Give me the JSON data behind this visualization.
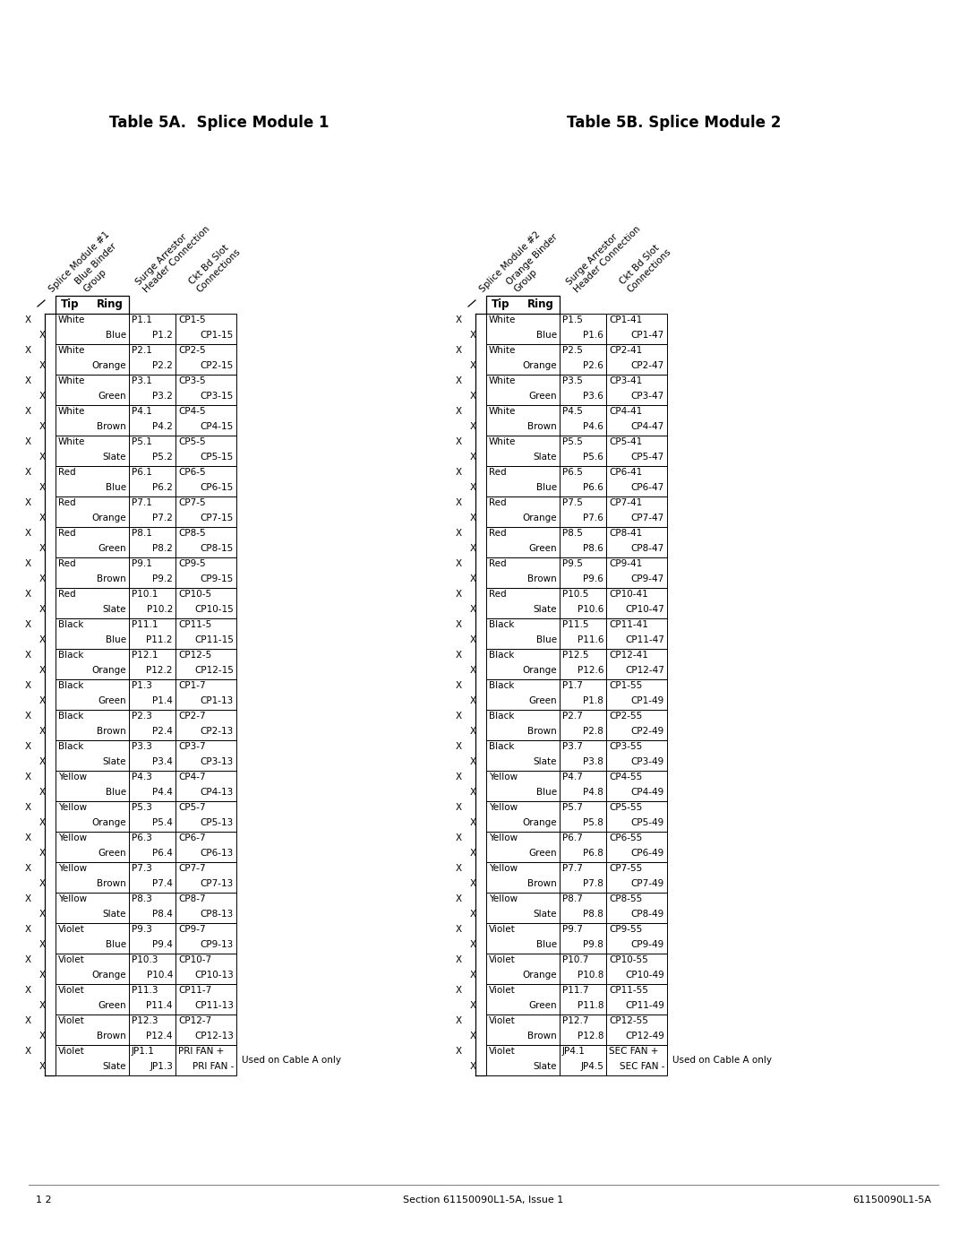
{
  "title_a": "Table 5A.  Splice Module 1",
  "title_b": "Table 5B. Splice Module 2",
  "footer_left": "1 2",
  "footer_center": "Section 61150090L1-5A, Issue 1",
  "footer_right": "61150090L1-5A",
  "col_headers_a": [
    "Splice Module #1",
    "Blue Binder\nGroup",
    "Surge Arrestor\nHeader Connection",
    "Ckt Bd Slot\nConnections"
  ],
  "col_headers_b": [
    "Splice Module #2",
    "Orange Binder\nGroup",
    "Surge Arrestor\nHeader Connection",
    "Ckt Bd Slot\nConnections"
  ],
  "table_a": [
    [
      "X",
      "",
      "White",
      "",
      "P1.1",
      "",
      "CP1-5",
      ""
    ],
    [
      "",
      "X",
      "",
      "Blue",
      "",
      "P1.2",
      "",
      "CP1-15"
    ],
    [
      "X",
      "",
      "White",
      "",
      "P2.1",
      "",
      "CP2-5",
      ""
    ],
    [
      "",
      "X",
      "",
      "Orange",
      "",
      "P2.2",
      "",
      "CP2-15"
    ],
    [
      "X",
      "",
      "White",
      "",
      "P3.1",
      "",
      "CP3-5",
      ""
    ],
    [
      "",
      "X",
      "",
      "Green",
      "",
      "P3.2",
      "",
      "CP3-15"
    ],
    [
      "X",
      "",
      "White",
      "",
      "P4.1",
      "",
      "CP4-5",
      ""
    ],
    [
      "",
      "X",
      "",
      "Brown",
      "",
      "P4.2",
      "",
      "CP4-15"
    ],
    [
      "X",
      "",
      "White",
      "",
      "P5.1",
      "",
      "CP5-5",
      ""
    ],
    [
      "",
      "X",
      "",
      "Slate",
      "",
      "P5.2",
      "",
      "CP5-15"
    ],
    [
      "X",
      "",
      "Red",
      "",
      "P6.1",
      "",
      "CP6-5",
      ""
    ],
    [
      "",
      "X",
      "",
      "Blue",
      "",
      "P6.2",
      "",
      "CP6-15"
    ],
    [
      "X",
      "",
      "Red",
      "",
      "P7.1",
      "",
      "CP7-5",
      ""
    ],
    [
      "",
      "X",
      "",
      "Orange",
      "",
      "P7.2",
      "",
      "CP7-15"
    ],
    [
      "X",
      "",
      "Red",
      "",
      "P8.1",
      "",
      "CP8-5",
      ""
    ],
    [
      "",
      "X",
      "",
      "Green",
      "",
      "P8.2",
      "",
      "CP8-15"
    ],
    [
      "X",
      "",
      "Red",
      "",
      "P9.1",
      "",
      "CP9-5",
      ""
    ],
    [
      "",
      "X",
      "",
      "Brown",
      "",
      "P9.2",
      "",
      "CP9-15"
    ],
    [
      "X",
      "",
      "Red",
      "",
      "P10.1",
      "",
      "CP10-5",
      ""
    ],
    [
      "",
      "X",
      "",
      "Slate",
      "",
      "P10.2",
      "",
      "CP10-15"
    ],
    [
      "X",
      "",
      "Black",
      "",
      "P11.1",
      "",
      "CP11-5",
      ""
    ],
    [
      "",
      "X",
      "",
      "Blue",
      "",
      "P11.2",
      "",
      "CP11-15"
    ],
    [
      "X",
      "",
      "Black",
      "",
      "P12.1",
      "",
      "CP12-5",
      ""
    ],
    [
      "",
      "X",
      "",
      "Orange",
      "",
      "P12.2",
      "",
      "CP12-15"
    ],
    [
      "X",
      "",
      "Black",
      "",
      "P1.3",
      "",
      "CP1-7",
      ""
    ],
    [
      "",
      "X",
      "",
      "Green",
      "",
      "P1.4",
      "",
      "CP1-13"
    ],
    [
      "X",
      "",
      "Black",
      "",
      "P2.3",
      "",
      "CP2-7",
      ""
    ],
    [
      "",
      "X",
      "",
      "Brown",
      "",
      "P2.4",
      "",
      "CP2-13"
    ],
    [
      "X",
      "",
      "Black",
      "",
      "P3.3",
      "",
      "CP3-7",
      ""
    ],
    [
      "",
      "X",
      "",
      "Slate",
      "",
      "P3.4",
      "",
      "CP3-13"
    ],
    [
      "X",
      "",
      "Yellow",
      "",
      "P4.3",
      "",
      "CP4-7",
      ""
    ],
    [
      "",
      "X",
      "",
      "Blue",
      "",
      "P4.4",
      "",
      "CP4-13"
    ],
    [
      "X",
      "",
      "Yellow",
      "",
      "P5.3",
      "",
      "CP5-7",
      ""
    ],
    [
      "",
      "X",
      "",
      "Orange",
      "",
      "P5.4",
      "",
      "CP5-13"
    ],
    [
      "X",
      "",
      "Yellow",
      "",
      "P6.3",
      "",
      "CP6-7",
      ""
    ],
    [
      "",
      "X",
      "",
      "Green",
      "",
      "P6.4",
      "",
      "CP6-13"
    ],
    [
      "X",
      "",
      "Yellow",
      "",
      "P7.3",
      "",
      "CP7-7",
      ""
    ],
    [
      "",
      "X",
      "",
      "Brown",
      "",
      "P7.4",
      "",
      "CP7-13"
    ],
    [
      "X",
      "",
      "Yellow",
      "",
      "P8.3",
      "",
      "CP8-7",
      ""
    ],
    [
      "",
      "X",
      "",
      "Slate",
      "",
      "P8.4",
      "",
      "CP8-13"
    ],
    [
      "X",
      "",
      "Violet",
      "",
      "P9.3",
      "",
      "CP9-7",
      ""
    ],
    [
      "",
      "X",
      "",
      "Blue",
      "",
      "P9.4",
      "",
      "CP9-13"
    ],
    [
      "X",
      "",
      "Violet",
      "",
      "P10.3",
      "",
      "CP10-7",
      ""
    ],
    [
      "",
      "X",
      "",
      "Orange",
      "",
      "P10.4",
      "",
      "CP10-13"
    ],
    [
      "X",
      "",
      "Violet",
      "",
      "P11.3",
      "",
      "CP11-7",
      ""
    ],
    [
      "",
      "X",
      "",
      "Green",
      "",
      "P11.4",
      "",
      "CP11-13"
    ],
    [
      "X",
      "",
      "Violet",
      "",
      "P12.3",
      "",
      "CP12-7",
      ""
    ],
    [
      "",
      "X",
      "",
      "Brown",
      "",
      "P12.4",
      "",
      "CP12-13"
    ],
    [
      "X",
      "",
      "Violet",
      "",
      "JP1.1",
      "",
      "PRI FAN +",
      ""
    ],
    [
      "",
      "X",
      "",
      "Slate",
      "",
      "JP1.3",
      "",
      "PRI FAN -",
      ""
    ]
  ],
  "table_b": [
    [
      "X",
      "",
      "White",
      "",
      "P1.5",
      "",
      "CP1-41",
      ""
    ],
    [
      "",
      "X",
      "",
      "Blue",
      "",
      "P1.6",
      "",
      "CP1-47"
    ],
    [
      "X",
      "",
      "White",
      "",
      "P2.5",
      "",
      "CP2-41",
      ""
    ],
    [
      "",
      "X",
      "",
      "Orange",
      "",
      "P2.6",
      "",
      "CP2-47"
    ],
    [
      "X",
      "",
      "White",
      "",
      "P3.5",
      "",
      "CP3-41",
      ""
    ],
    [
      "",
      "X",
      "",
      "Green",
      "",
      "P3.6",
      "",
      "CP3-47"
    ],
    [
      "X",
      "",
      "White",
      "",
      "P4.5",
      "",
      "CP4-41",
      ""
    ],
    [
      "",
      "X",
      "",
      "Brown",
      "",
      "P4.6",
      "",
      "CP4-47"
    ],
    [
      "X",
      "",
      "White",
      "",
      "P5.5",
      "",
      "CP5-41",
      ""
    ],
    [
      "",
      "X",
      "",
      "Slate",
      "",
      "P5.6",
      "",
      "CP5-47"
    ],
    [
      "X",
      "",
      "Red",
      "",
      "P6.5",
      "",
      "CP6-41",
      ""
    ],
    [
      "",
      "X",
      "",
      "Blue",
      "",
      "P6.6",
      "",
      "CP6-47"
    ],
    [
      "X",
      "",
      "Red",
      "",
      "P7.5",
      "",
      "CP7-41",
      ""
    ],
    [
      "",
      "X",
      "",
      "Orange",
      "",
      "P7.6",
      "",
      "CP7-47"
    ],
    [
      "X",
      "",
      "Red",
      "",
      "P8.5",
      "",
      "CP8-41",
      ""
    ],
    [
      "",
      "X",
      "",
      "Green",
      "",
      "P8.6",
      "",
      "CP8-47"
    ],
    [
      "X",
      "",
      "Red",
      "",
      "P9.5",
      "",
      "CP9-41",
      ""
    ],
    [
      "",
      "X",
      "",
      "Brown",
      "",
      "P9.6",
      "",
      "CP9-47"
    ],
    [
      "X",
      "",
      "Red",
      "",
      "P10.5",
      "",
      "CP10-41",
      ""
    ],
    [
      "",
      "X",
      "",
      "Slate",
      "",
      "P10.6",
      "",
      "CP10-47"
    ],
    [
      "X",
      "",
      "Black",
      "",
      "P11.5",
      "",
      "CP11-41",
      ""
    ],
    [
      "",
      "X",
      "",
      "Blue",
      "",
      "P11.6",
      "",
      "CP11-47"
    ],
    [
      "X",
      "",
      "Black",
      "",
      "P12.5",
      "",
      "CP12-41",
      ""
    ],
    [
      "",
      "X",
      "",
      "Orange",
      "",
      "P12.6",
      "",
      "CP12-47"
    ],
    [
      "X",
      "",
      "Black",
      "",
      "P1.7",
      "",
      "CP1-55",
      ""
    ],
    [
      "",
      "X",
      "",
      "Green",
      "",
      "P1.8",
      "",
      "CP1-49"
    ],
    [
      "X",
      "",
      "Black",
      "",
      "P2.7",
      "",
      "CP2-55",
      ""
    ],
    [
      "",
      "X",
      "",
      "Brown",
      "",
      "P2.8",
      "",
      "CP2-49"
    ],
    [
      "X",
      "",
      "Black",
      "",
      "P3.7",
      "",
      "CP3-55",
      ""
    ],
    [
      "",
      "X",
      "",
      "Slate",
      "",
      "P3.8",
      "",
      "CP3-49"
    ],
    [
      "X",
      "",
      "Yellow",
      "",
      "P4.7",
      "",
      "CP4-55",
      ""
    ],
    [
      "",
      "X",
      "",
      "Blue",
      "",
      "P4.8",
      "",
      "CP4-49"
    ],
    [
      "X",
      "",
      "Yellow",
      "",
      "P5.7",
      "",
      "CP5-55",
      ""
    ],
    [
      "",
      "X",
      "",
      "Orange",
      "",
      "P5.8",
      "",
      "CP5-49"
    ],
    [
      "X",
      "",
      "Yellow",
      "",
      "P6.7",
      "",
      "CP6-55",
      ""
    ],
    [
      "",
      "X",
      "",
      "Green",
      "",
      "P6.8",
      "",
      "CP6-49"
    ],
    [
      "X",
      "",
      "Yellow",
      "",
      "P7.7",
      "",
      "CP7-55",
      ""
    ],
    [
      "",
      "X",
      "",
      "Brown",
      "",
      "P7.8",
      "",
      "CP7-49"
    ],
    [
      "X",
      "",
      "Yellow",
      "",
      "P8.7",
      "",
      "CP8-55",
      ""
    ],
    [
      "",
      "X",
      "",
      "Slate",
      "",
      "P8.8",
      "",
      "CP8-49"
    ],
    [
      "X",
      "",
      "Violet",
      "",
      "P9.7",
      "",
      "CP9-55",
      ""
    ],
    [
      "",
      "X",
      "",
      "Blue",
      "",
      "P9.8",
      "",
      "CP9-49"
    ],
    [
      "X",
      "",
      "Violet",
      "",
      "P10.7",
      "",
      "CP10-55",
      ""
    ],
    [
      "",
      "X",
      "",
      "Orange",
      "",
      "P10.8",
      "",
      "CP10-49"
    ],
    [
      "X",
      "",
      "Violet",
      "",
      "P11.7",
      "",
      "CP11-55",
      ""
    ],
    [
      "",
      "X",
      "",
      "Green",
      "",
      "P11.8",
      "",
      "CP11-49"
    ],
    [
      "X",
      "",
      "Violet",
      "",
      "P12.7",
      "",
      "CP12-55",
      ""
    ],
    [
      "",
      "X",
      "",
      "Brown",
      "",
      "P12.8",
      "",
      "CP12-49"
    ],
    [
      "X",
      "",
      "Violet",
      "",
      "JP4.1",
      "",
      "SEC FAN +",
      ""
    ],
    [
      "",
      "X",
      "",
      "Slate",
      "",
      "JP4.5",
      "",
      "SEC FAN -",
      ""
    ]
  ],
  "note": "Used on Cable A only",
  "bg_color": "#ffffff",
  "text_color": "#000000"
}
